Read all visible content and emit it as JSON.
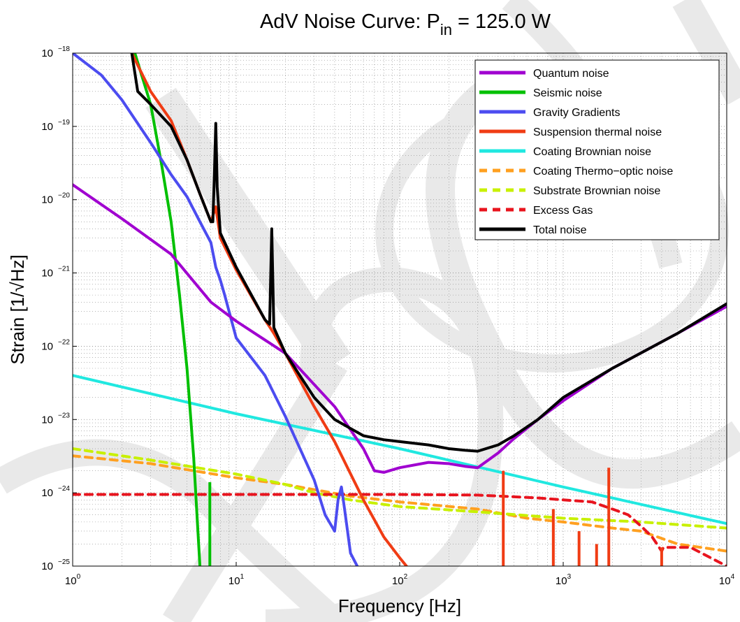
{
  "chart_data": {
    "type": "line",
    "title": {
      "main": "AdV Noise Curve: P",
      "sub": "in",
      "rest": " = 125.0 W"
    },
    "xlabel": "Frequency [Hz]",
    "ylabel": "Strain [1/√Hz]",
    "x_scale": "log",
    "y_scale": "log",
    "xlim": [
      1,
      10000
    ],
    "ylim": [
      1e-25,
      1e-18
    ],
    "x_ticks": [
      {
        "base": "10",
        "exp": "0",
        "value": 1
      },
      {
        "base": "10",
        "exp": "1",
        "value": 10
      },
      {
        "base": "10",
        "exp": "2",
        "value": 100
      },
      {
        "base": "10",
        "exp": "3",
        "value": 1000
      },
      {
        "base": "10",
        "exp": "4",
        "value": 10000
      }
    ],
    "y_ticks": [
      {
        "base": "10",
        "exp": "−18",
        "value": 1e-18
      },
      {
        "base": "10",
        "exp": "−19",
        "value": 1e-19
      },
      {
        "base": "10",
        "exp": "−20",
        "value": 1e-20
      },
      {
        "base": "10",
        "exp": "−21",
        "value": 1e-21
      },
      {
        "base": "10",
        "exp": "−22",
        "value": 1e-22
      },
      {
        "base": "10",
        "exp": "−23",
        "value": 1e-23
      },
      {
        "base": "10",
        "exp": "−24",
        "value": 1e-24
      },
      {
        "base": "10",
        "exp": "−25",
        "value": 1e-25
      }
    ],
    "grid": true,
    "legend_position": "top-right",
    "series": [
      {
        "name": "Quantum noise",
        "color": "#a000d0",
        "dash": false,
        "points": [
          [
            1,
            1.6e-20
          ],
          [
            2,
            5.5e-21
          ],
          [
            4,
            1.8e-21
          ],
          [
            7,
            4e-22
          ],
          [
            10,
            2.2e-22
          ],
          [
            20,
            8e-23
          ],
          [
            40,
            1.5e-23
          ],
          [
            60,
            4e-24
          ],
          [
            70,
            2e-24
          ],
          [
            80,
            1.9e-24
          ],
          [
            100,
            2.2e-24
          ],
          [
            150,
            2.6e-24
          ],
          [
            200,
            2.5e-24
          ],
          [
            250,
            2.3e-24
          ],
          [
            300,
            2.2e-24
          ],
          [
            400,
            3.5e-24
          ],
          [
            500,
            5.5e-24
          ],
          [
            700,
            1e-23
          ],
          [
            1000,
            1.8e-23
          ],
          [
            2000,
            5e-23
          ],
          [
            5000,
            1.5e-22
          ],
          [
            10000,
            3.5e-22
          ]
        ]
      },
      {
        "name": "Seismic noise",
        "color": "#00c000",
        "dash": false,
        "points": [
          [
            2.4,
            1e-18
          ],
          [
            3,
            2e-19
          ],
          [
            3.5,
            3e-20
          ],
          [
            4,
            5e-21
          ],
          [
            4.5,
            5e-22
          ],
          [
            5,
            5e-23
          ],
          [
            5.5,
            3e-24
          ],
          [
            6,
            1e-25
          ]
        ],
        "spikes": [
          {
            "x": 6.9,
            "y": 1.4e-24
          }
        ]
      },
      {
        "name": "Gravity Gradients",
        "color": "#4c4cf0",
        "dash": false,
        "points": [
          [
            1,
            1e-18
          ],
          [
            1.5,
            5e-19
          ],
          [
            2,
            2.3e-19
          ],
          [
            3,
            6e-20
          ],
          [
            4,
            2.2e-20
          ],
          [
            5,
            1.1e-20
          ],
          [
            6,
            5e-21
          ],
          [
            7,
            2.6e-21
          ],
          [
            7.5,
            1.2e-21
          ],
          [
            8,
            8e-22
          ],
          [
            8.5,
            5e-22
          ],
          [
            10,
            1.3e-22
          ],
          [
            15,
            4e-23
          ],
          [
            20,
            1.1e-23
          ],
          [
            30,
            1.5e-24
          ],
          [
            35,
            5e-25
          ],
          [
            40,
            3e-25
          ],
          [
            42,
            8e-25
          ],
          [
            44,
            1.2e-24
          ],
          [
            46,
            6e-25
          ],
          [
            50,
            1.5e-25
          ],
          [
            55,
            1e-25
          ]
        ]
      },
      {
        "name": "Suspension thermal noise",
        "color": "#f03c14",
        "dash": false,
        "points": [
          [
            2.3,
            1e-18
          ],
          [
            3,
            3e-19
          ],
          [
            4,
            1.2e-19
          ],
          [
            5,
            3.5e-20
          ],
          [
            6,
            1.2e-20
          ],
          [
            7,
            5e-21
          ],
          [
            7.5,
            8e-21
          ],
          [
            8,
            3e-21
          ],
          [
            10,
            1.1e-21
          ],
          [
            15,
            2.3e-22
          ],
          [
            17,
            1.5e-22
          ],
          [
            20,
            8e-23
          ],
          [
            30,
            1.5e-23
          ],
          [
            40,
            5e-24
          ],
          [
            60,
            8e-25
          ],
          [
            80,
            2.5e-25
          ],
          [
            100,
            1.3e-25
          ],
          [
            110,
            1e-25
          ]
        ],
        "spikes": [
          {
            "x": 430,
            "y": 2e-24
          },
          {
            "x": 870,
            "y": 6e-25
          },
          {
            "x": 1250,
            "y": 3e-25
          },
          {
            "x": 1600,
            "y": 2e-25
          },
          {
            "x": 1900,
            "y": 2.2e-24
          },
          {
            "x": 4000,
            "y": 1.8e-25
          }
        ]
      },
      {
        "name": "Coating Brownian noise",
        "color": "#20e8e0",
        "dash": false,
        "points": [
          [
            1,
            4e-23
          ],
          [
            10,
            1.2e-23
          ],
          [
            100,
            4e-24
          ],
          [
            1000,
            1.2e-24
          ],
          [
            10000,
            3.8e-25
          ]
        ]
      },
      {
        "name": "Coating Thermo−optic noise",
        "color": "#ffa020",
        "dash": true,
        "points": [
          [
            1,
            3.2e-24
          ],
          [
            3,
            2.5e-24
          ],
          [
            10,
            1.6e-24
          ],
          [
            20,
            1.3e-24
          ],
          [
            50,
            9e-25
          ],
          [
            100,
            7.5e-25
          ],
          [
            300,
            6e-25
          ],
          [
            600,
            4.5e-25
          ],
          [
            1000,
            4e-25
          ],
          [
            2000,
            3.3e-25
          ],
          [
            3000,
            3e-25
          ],
          [
            5000,
            2e-25
          ],
          [
            10000,
            1.6e-25
          ]
        ]
      },
      {
        "name": "Substrate Brownian noise",
        "color": "#c8f000",
        "dash": true,
        "points": [
          [
            1,
            4e-24
          ],
          [
            3,
            2.8e-24
          ],
          [
            10,
            1.8e-24
          ],
          [
            20,
            1.3e-24
          ],
          [
            30,
            1e-24
          ],
          [
            50,
            8e-25
          ],
          [
            100,
            6.5e-25
          ],
          [
            300,
            5.5e-25
          ],
          [
            1000,
            4.5e-25
          ],
          [
            3000,
            4e-25
          ],
          [
            10000,
            3.3e-25
          ]
        ]
      },
      {
        "name": "Excess Gas",
        "color": "#e8141e",
        "dash": true,
        "points": [
          [
            1,
            9.5e-25
          ],
          [
            100,
            9.5e-25
          ],
          [
            300,
            9.3e-25
          ],
          [
            700,
            8.5e-25
          ],
          [
            1000,
            8e-25
          ],
          [
            1500,
            7.5e-25
          ],
          [
            2000,
            6e-25
          ],
          [
            2500,
            5e-25
          ],
          [
            3000,
            3.5e-25
          ],
          [
            3500,
            2.5e-25
          ],
          [
            4000,
            1.6e-25
          ],
          [
            4100,
            1.8e-25
          ],
          [
            6000,
            1.8e-25
          ],
          [
            10000,
            1e-25
          ]
        ]
      },
      {
        "name": "Total noise",
        "color": "#000000",
        "dash": false,
        "points": [
          [
            2.3,
            1e-18
          ],
          [
            2.5,
            3e-19
          ],
          [
            3,
            2e-19
          ],
          [
            4,
            1e-19
          ],
          [
            5,
            3.5e-20
          ],
          [
            6,
            1.2e-20
          ],
          [
            7,
            5e-21
          ],
          [
            7.2,
            5e-21
          ],
          [
            7.35,
            2e-20
          ],
          [
            7.5,
            1.1e-19
          ],
          [
            7.65,
            1.5e-20
          ],
          [
            8,
            3.5e-21
          ],
          [
            10,
            1.2e-21
          ],
          [
            15,
            2.3e-22
          ],
          [
            16,
            2e-22
          ],
          [
            16.2,
            6e-22
          ],
          [
            16.5,
            4e-21
          ],
          [
            16.8,
            6e-22
          ],
          [
            17,
            1.8e-22
          ],
          [
            20,
            8e-23
          ],
          [
            30,
            2e-23
          ],
          [
            40,
            1e-23
          ],
          [
            60,
            6e-24
          ],
          [
            80,
            5.3e-24
          ],
          [
            100,
            5e-24
          ],
          [
            150,
            4.5e-24
          ],
          [
            200,
            4e-24
          ],
          [
            250,
            3.8e-24
          ],
          [
            300,
            3.7e-24
          ],
          [
            400,
            4.5e-24
          ],
          [
            500,
            6e-24
          ],
          [
            700,
            1e-23
          ],
          [
            1000,
            2e-23
          ],
          [
            2000,
            5e-23
          ],
          [
            5000,
            1.5e-22
          ],
          [
            10000,
            3.8e-22
          ]
        ]
      }
    ]
  }
}
